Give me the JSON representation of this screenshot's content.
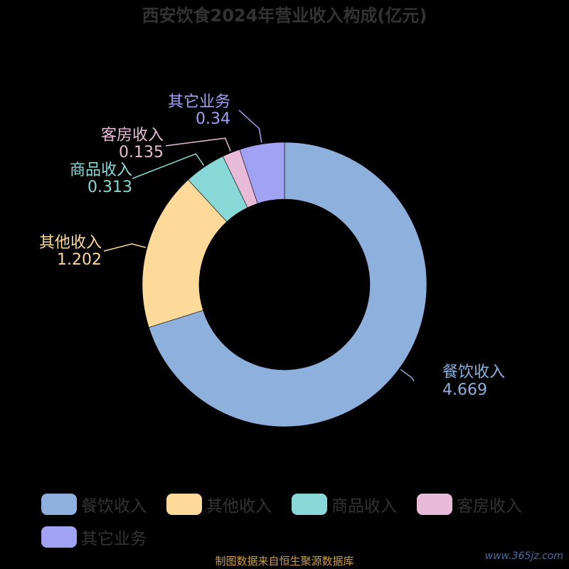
{
  "chart_data": {
    "type": "pie",
    "title": "西安饮食2024年营业收入构成(亿元)",
    "categories": [
      "餐饮收入",
      "其他收入",
      "商品收入",
      "客房收入",
      "其它业务"
    ],
    "values": [
      4.669,
      1.202,
      0.313,
      0.135,
      0.34
    ],
    "value_labels": [
      "4.669",
      "1.202",
      "0.313",
      "0.135",
      "0.34"
    ],
    "colors": [
      "#8eb0dc",
      "#fdd99a",
      "#88d8d8",
      "#e8bcd8",
      "#a2a2f4"
    ],
    "legend_position": "bottom",
    "donut": true
  },
  "legend": {
    "items": [
      {
        "label": "餐饮收入",
        "color": "#8eb0dc"
      },
      {
        "label": "其他收入",
        "color": "#fdd99a"
      },
      {
        "label": "商品收入",
        "color": "#88d8d8"
      },
      {
        "label": "客房收入",
        "color": "#e8bcd8"
      },
      {
        "label": "其它业务",
        "color": "#a2a2f4"
      }
    ]
  },
  "footer": {
    "source": "制图数据来自恒生聚源数据库",
    "watermark": "www.365jz.com"
  }
}
